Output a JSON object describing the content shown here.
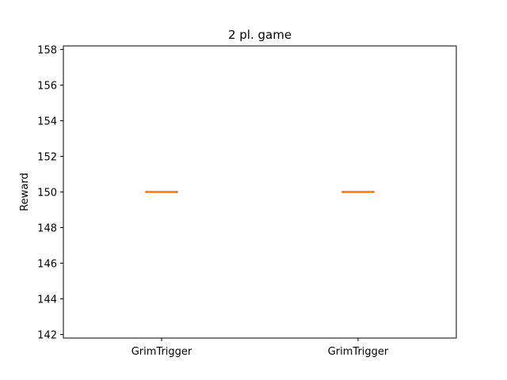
{
  "chart_data": {
    "type": "box",
    "title": "2 pl. game",
    "xlabel": "",
    "ylabel": "Reward",
    "ylim": [
      141.8,
      158.2
    ],
    "yticks": [
      142,
      144,
      146,
      148,
      150,
      152,
      154,
      156,
      158
    ],
    "categories": [
      "GrimTrigger",
      "GrimTrigger"
    ],
    "boxes": [
      {
        "name": "GrimTrigger",
        "min": 150,
        "q1": 150,
        "median": 150,
        "q3": 150,
        "max": 150
      },
      {
        "name": "GrimTrigger",
        "min": 150,
        "q1": 150,
        "median": 150,
        "q3": 150,
        "max": 150
      }
    ],
    "grid": false,
    "colors": {
      "box": "#000000",
      "median": "#ff7f0e",
      "axes": "#000000"
    }
  }
}
